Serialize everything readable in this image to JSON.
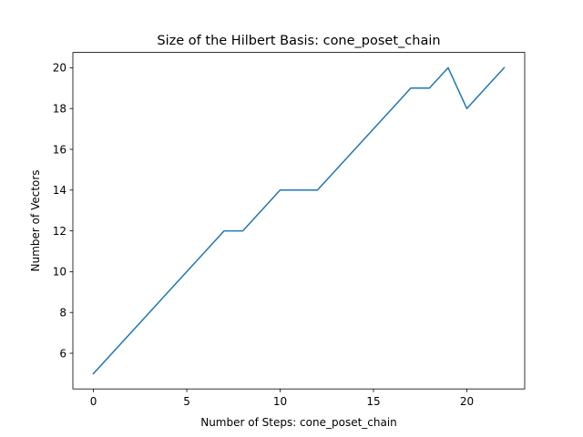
{
  "chart_data": {
    "type": "line",
    "title": "Size of the Hilbert Basis: cone_poset_chain",
    "xlabel": "Number of Steps: cone_poset_chain",
    "ylabel": "Number of Vectors",
    "x": [
      0,
      1,
      2,
      3,
      4,
      5,
      6,
      7,
      8,
      9,
      10,
      11,
      12,
      13,
      14,
      15,
      16,
      17,
      18,
      19,
      20,
      21,
      22
    ],
    "series": [
      {
        "values": [
          5,
          6,
          7,
          8,
          9,
          10,
          11,
          12,
          12,
          13,
          14,
          14,
          14,
          15,
          16,
          17,
          18,
          19,
          19,
          20,
          18,
          19,
          20
        ],
        "color": "#1f77b4"
      }
    ],
    "xlim": [
      -1.1,
      23.1
    ],
    "ylim": [
      4.25,
      20.75
    ],
    "xticks": [
      0,
      5,
      10,
      15,
      20
    ],
    "yticks": [
      6,
      8,
      10,
      12,
      14,
      16,
      18,
      20
    ],
    "grid": false,
    "legend": "none"
  }
}
